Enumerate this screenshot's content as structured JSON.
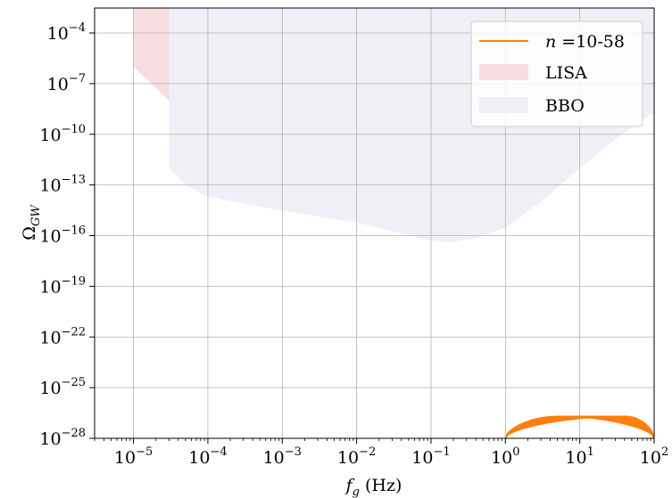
{
  "chart_data": {
    "type": "line",
    "title": "",
    "xlabel": "f_g (Hz)",
    "ylabel": "Ω_GW",
    "x_scale": "log",
    "y_scale": "log",
    "xlim": [
      3e-06,
      100
    ],
    "ylim": [
      1e-28,
      0.003
    ],
    "grid": true,
    "legend_placement": "top-right",
    "x_ticks": [
      {
        "base": "10",
        "exp": "−5",
        "value": 1e-05
      },
      {
        "base": "10",
        "exp": "−4",
        "value": 0.0001
      },
      {
        "base": "10",
        "exp": "−3",
        "value": 0.001
      },
      {
        "base": "10",
        "exp": "−2",
        "value": 0.01
      },
      {
        "base": "10",
        "exp": "−1",
        "value": 0.1
      },
      {
        "base": "10",
        "exp": "0",
        "value": 1
      },
      {
        "base": "10",
        "exp": "1",
        "value": 10
      },
      {
        "base": "10",
        "exp": "2",
        "value": 100
      }
    ],
    "y_ticks": [
      {
        "base": "10",
        "exp": "−4",
        "value": 0.0001
      },
      {
        "base": "10",
        "exp": "−7",
        "value": 1e-07
      },
      {
        "base": "10",
        "exp": "−10",
        "value": 1e-10
      },
      {
        "base": "10",
        "exp": "−13",
        "value": 1e-13
      },
      {
        "base": "10",
        "exp": "−16",
        "value": 1e-16
      },
      {
        "base": "10",
        "exp": "−19",
        "value": 1e-19
      },
      {
        "base": "10",
        "exp": "−22",
        "value": 1e-22
      },
      {
        "base": "10",
        "exp": "−25",
        "value": 1e-25
      },
      {
        "base": "10",
        "exp": "−28",
        "value": 1e-28
      }
    ],
    "regions": [
      {
        "name": "LISA",
        "color": "#f6dde0",
        "boundary": [
          [
            1e-05,
            0.003
          ],
          [
            1e-05,
            1e-06
          ],
          [
            3e-05,
            1e-08
          ],
          [
            0.0001,
            1e-10
          ],
          [
            0.0003,
            1e-11
          ],
          [
            0.001,
            1e-12
          ],
          [
            0.003,
            2e-13
          ],
          [
            0.006,
            2e-13
          ],
          [
            0.01,
            5e-13
          ],
          [
            0.03,
            5e-12
          ],
          [
            0.1,
            3e-10
          ],
          [
            0.3,
            3e-08
          ],
          [
            1,
            5e-06
          ],
          [
            1,
            0.003
          ]
        ]
      },
      {
        "name": "BBO",
        "color": "#f1eff6",
        "boundary": [
          [
            3e-05,
            0.003
          ],
          [
            3e-05,
            1e-12
          ],
          [
            5e-05,
            1e-13
          ],
          [
            0.0001,
            2e-14
          ],
          [
            0.001,
            3e-15
          ],
          [
            0.01,
            6e-16
          ],
          [
            0.1,
            5e-17
          ],
          [
            0.2,
            4e-17
          ],
          [
            0.4,
            7e-17
          ],
          [
            1,
            3e-16
          ],
          [
            3,
            1e-14
          ],
          [
            10,
            1e-12
          ],
          [
            30,
            5e-11
          ],
          [
            100,
            2e-09
          ],
          [
            100,
            0.003
          ]
        ]
      }
    ],
    "series": [
      {
        "name": "n =10-58",
        "color": "#ff7f0e",
        "peak_omega": 2e-27,
        "f_start": 1,
        "f_end": 100,
        "peak_frequencies": [
          5,
          6,
          7,
          8,
          9,
          10,
          11,
          12.5,
          14,
          16,
          18,
          20,
          23,
          26,
          30,
          34,
          38,
          42
        ]
      }
    ],
    "legend": [
      {
        "label_math": "n",
        "label_text": " =10-58",
        "kind": "line",
        "color": "#ff7f0e"
      },
      {
        "label_text": "LISA",
        "kind": "patch",
        "color": "#f6dde0"
      },
      {
        "label_text": "BBO",
        "kind": "patch",
        "color": "#f1eff6"
      }
    ]
  }
}
